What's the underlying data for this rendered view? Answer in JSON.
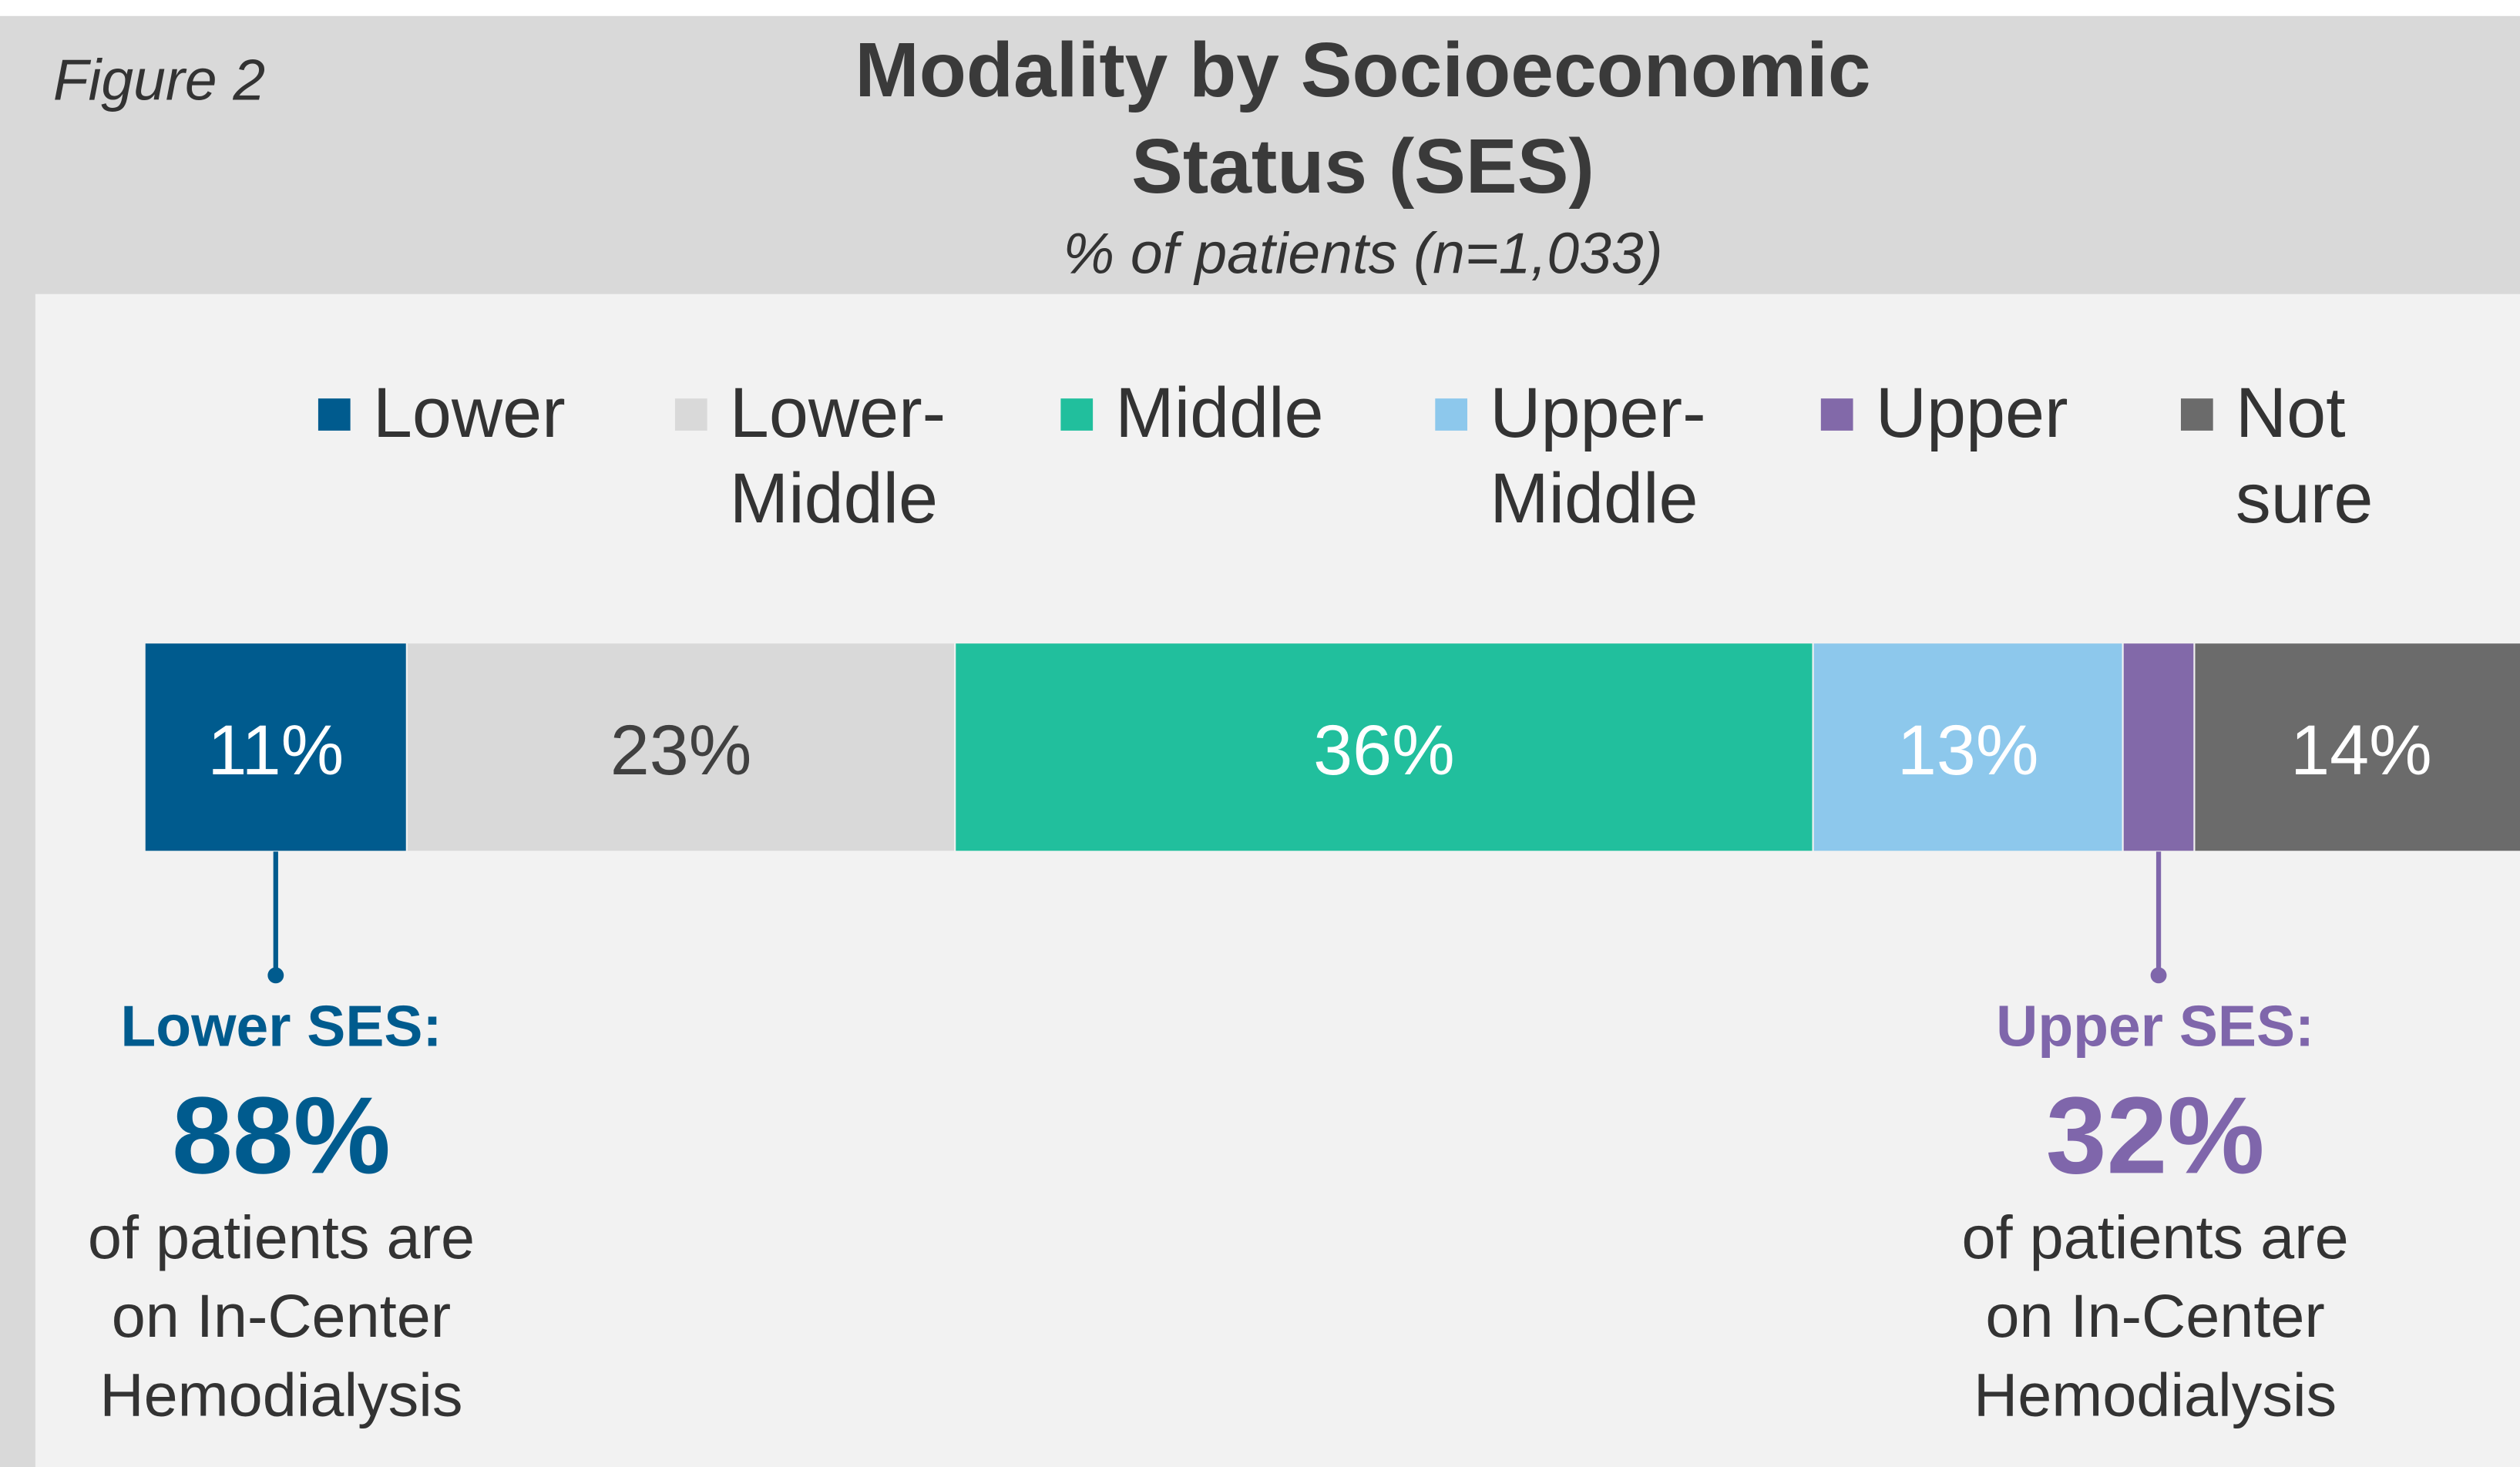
{
  "chart_data": {
    "type": "stacked_bar",
    "figure_label": "Figure 2",
    "title": [
      "Modality by Socioeconomic",
      "Status (SES)"
    ],
    "subtitle": "% of patients (n=1,033)",
    "orientation": "horizontal",
    "xlim": [
      0,
      100
    ],
    "series": [
      {
        "name": "Lower",
        "color": "#005b8e",
        "values": [
          11
        ],
        "value_labels": [
          "11%"
        ]
      },
      {
        "name": "Lower-\nMiddle",
        "color": "#d9d9d9",
        "values": [
          23
        ],
        "value_labels": [
          "23%"
        ]
      },
      {
        "name": "Middle",
        "color": "#21bf9d",
        "values": [
          36
        ],
        "value_labels": [
          "36%"
        ]
      },
      {
        "name": "Upper-\nMiddle",
        "color": "#8dc8ec",
        "values": [
          13
        ],
        "value_labels": [
          "13%"
        ]
      },
      {
        "name": "Upper",
        "color": "#8269a9",
        "values": [
          3
        ]
      },
      {
        "name": "Not\nsure",
        "color": "#6b6b6b",
        "values": [
          14
        ],
        "value_labels": [
          "14%"
        ]
      }
    ],
    "annotations": [
      {
        "heading": "Lower SES:",
        "figure": "88%",
        "text": [
          "of patients are",
          "on In-Center",
          "Hemodialysis"
        ],
        "color": "#005b8e"
      },
      {
        "heading": "Upper SES:",
        "figure": "32%",
        "text": [
          "of patients are",
          "on In-Center",
          "Hemodialysis"
        ],
        "color": "#7f66ab"
      }
    ]
  }
}
